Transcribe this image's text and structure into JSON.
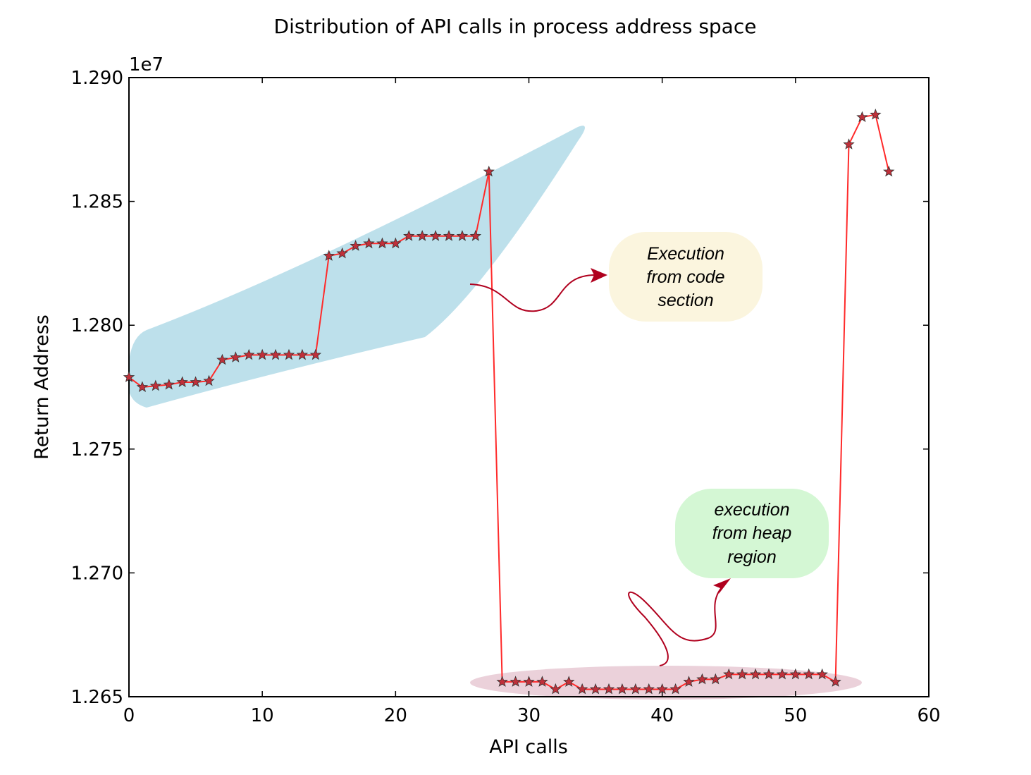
{
  "chart_data": {
    "type": "line",
    "title": "Distribution of API calls in process address space",
    "xlabel": "API calls",
    "ylabel": "Return Address",
    "y_offset_label": "1e7",
    "xlim": [
      0,
      60
    ],
    "ylim": [
      1.265,
      1.29
    ],
    "x_ticks": [
      "0",
      "10",
      "20",
      "30",
      "40",
      "50",
      "60"
    ],
    "y_ticks": [
      "1.265",
      "1.270",
      "1.275",
      "1.280",
      "1.285",
      "1.290"
    ],
    "grid": false,
    "legend": "none",
    "series": [
      {
        "color": "#ff2a2a",
        "marker": "star",
        "marker_color": "#c0303a",
        "x": [
          0,
          1,
          2,
          3,
          4,
          5,
          6,
          7,
          8,
          9,
          10,
          11,
          12,
          13,
          14,
          15,
          16,
          17,
          18,
          19,
          20,
          21,
          22,
          23,
          24,
          25,
          26,
          27,
          28,
          29,
          30,
          31,
          32,
          33,
          34,
          35,
          36,
          37,
          38,
          39,
          40,
          41,
          42,
          43,
          44,
          45,
          46,
          47,
          48,
          49,
          50,
          51,
          52,
          53,
          54,
          55,
          56,
          57
        ],
        "y": [
          1.2779,
          1.2775,
          1.27755,
          1.2776,
          1.2777,
          1.2777,
          1.27775,
          1.2786,
          1.2787,
          1.2788,
          1.2788,
          1.2788,
          1.2788,
          1.2788,
          1.2788,
          1.2828,
          1.2829,
          1.2832,
          1.2833,
          1.2833,
          1.2833,
          1.2836,
          1.2836,
          1.2836,
          1.2836,
          1.2836,
          1.2836,
          1.2862,
          1.2656,
          1.2656,
          1.2656,
          1.2656,
          1.2653,
          1.2656,
          1.2653,
          1.2653,
          1.2653,
          1.2653,
          1.2653,
          1.2653,
          1.2653,
          1.2653,
          1.2656,
          1.2657,
          1.2657,
          1.2659,
          1.2659,
          1.2659,
          1.2659,
          1.2659,
          1.2659,
          1.2659,
          1.2659,
          1.2656,
          1.2873,
          1.2884,
          1.2885,
          1.2862
        ]
      }
    ],
    "annotations": [
      {
        "text_lines": [
          "Execution",
          "from code",
          "section"
        ],
        "fill": "#fbf5de",
        "region_fill": "#add8e6"
      },
      {
        "text_lines": [
          "execution",
          "from heap",
          "region"
        ],
        "fill": "#d4f7d4",
        "region_fill": "#e8c9d4"
      }
    ],
    "arrow_color": "#b0001e"
  }
}
